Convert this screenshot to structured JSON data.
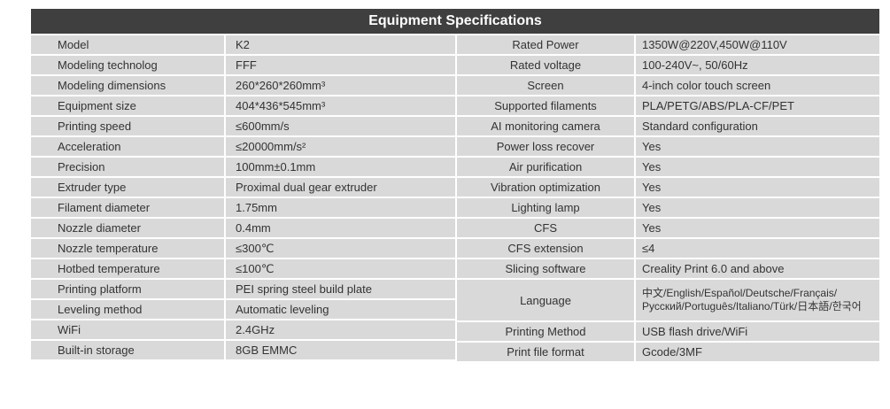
{
  "title": "Equipment Specifications",
  "left": [
    {
      "label": "Model",
      "value": "K2"
    },
    {
      "label": "Modeling technolog",
      "value": "FFF"
    },
    {
      "label": "Modeling dimensions",
      "value": "260*260*260mm³"
    },
    {
      "label": "Equipment size",
      "value": "404*436*545mm³"
    },
    {
      "label": "Printing speed",
      "value": "≤600mm/s"
    },
    {
      "label": "Acceleration",
      "value": "≤20000mm/s²"
    },
    {
      "label": "Precision",
      "value": "100mm±0.1mm"
    },
    {
      "label": "Extruder type",
      "value": "Proximal dual gear extruder"
    },
    {
      "label": "Filament diameter",
      "value": "1.75mm"
    },
    {
      "label": "Nozzle diameter",
      "value": "0.4mm"
    },
    {
      "label": "Nozzle temperature",
      "value": "≤300℃"
    },
    {
      "label": "Hotbed temperature",
      "value": "≤100℃"
    },
    {
      "label": "Printing platform",
      "value": "PEI spring steel build plate"
    },
    {
      "label": "Leveling method",
      "value": "Automatic leveling"
    },
    {
      "label": "WiFi",
      "value": "2.4GHz"
    },
    {
      "label": "Built-in storage",
      "value": "8GB EMMC"
    }
  ],
  "right": [
    {
      "label": "Rated Power",
      "value": "1350W@220V,450W@110V"
    },
    {
      "label": "Rated voltage",
      "value": "100-240V~, 50/60Hz"
    },
    {
      "label": "Screen",
      "value": "4-inch color touch screen"
    },
    {
      "label": "Supported filaments",
      "value": "PLA/PETG/ABS/PLA-CF/PET"
    },
    {
      "label": "AI monitoring camera",
      "value": "Standard configuration"
    },
    {
      "label": "Power loss recover",
      "value": "Yes"
    },
    {
      "label": "Air purification",
      "value": "Yes"
    },
    {
      "label": "Vibration optimization",
      "value": "Yes"
    },
    {
      "label": "Lighting lamp",
      "value": "Yes"
    },
    {
      "label": "CFS",
      "value": "Yes"
    },
    {
      "label": "CFS extension",
      "value": "≤4"
    },
    {
      "label": "Slicing software",
      "value": "Creality Print 6.0 and above"
    },
    {
      "label": "Language",
      "value": "中文/English/Español/Deutsche/Français/Русский/Português/Italiano/Türk/日本語/한국어"
    },
    {
      "label": "Printing Method",
      "value": "USB flash drive/WiFi"
    },
    {
      "label": "Print file format",
      "value": "Gcode/3MF"
    }
  ]
}
